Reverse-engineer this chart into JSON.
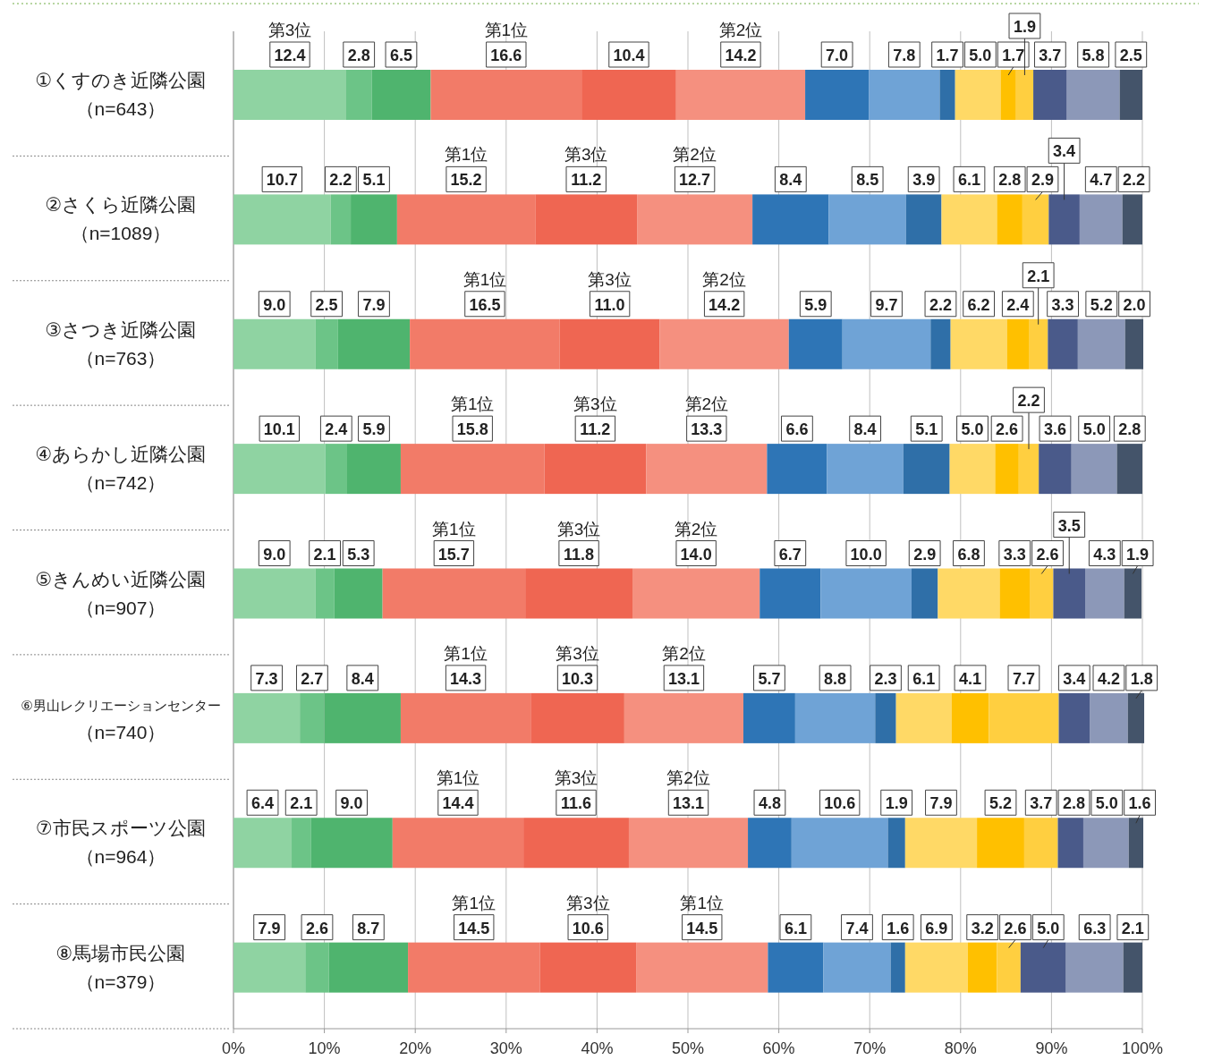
{
  "chart_data": {
    "type": "bar",
    "orientation": "horizontal",
    "stacked": true,
    "grid": "x",
    "categories": [
      "①くすのき近隣公園（n=643）",
      "②さくら近隣公園（n=1089）",
      "③さつき近隣公園（n=763）",
      "④あらかし近隣公園（n=742）",
      "⑤きんめい近隣公園（n=907）",
      "⑥男山レクリエーションセンター（n=740）",
      "⑦市民スポーツ公園（n=964）",
      "⑧馬場市民公園（n=379）"
    ],
    "xlim": [
      0,
      100
    ],
    "xticks": [
      {
        "value": 0,
        "label": "0%"
      },
      {
        "value": 10,
        "label": "10%"
      },
      {
        "value": 20,
        "label": "20%"
      },
      {
        "value": 30,
        "label": "30%"
      },
      {
        "value": 40,
        "label": "40%"
      },
      {
        "value": 50,
        "label": "50%"
      },
      {
        "value": 60,
        "label": "60%"
      },
      {
        "value": 70,
        "label": "70%"
      },
      {
        "value": 80,
        "label": "80%"
      },
      {
        "value": 90,
        "label": "90%"
      },
      {
        "value": 100,
        "label": "100%"
      }
    ],
    "series": [
      {
        "color": "#8fd3a2",
        "values": [
          12.4,
          10.7,
          9.0,
          10.1,
          9.0,
          7.3,
          6.4,
          7.9
        ],
        "value_labels": [
          "12.4",
          "10.7",
          "9.0",
          "10.1",
          "9.0",
          "7.3",
          "6.4",
          "7.9"
        ]
      },
      {
        "color": "#6cc487",
        "values": [
          2.8,
          2.2,
          2.5,
          2.4,
          2.1,
          2.7,
          2.1,
          2.6
        ],
        "value_labels": [
          "2.8",
          "2.2",
          "2.5",
          "2.4",
          "2.1",
          "2.7",
          "2.1",
          "2.6"
        ]
      },
      {
        "color": "#4fb46e",
        "values": [
          6.5,
          5.1,
          7.9,
          5.9,
          5.3,
          8.4,
          9.0,
          8.7
        ],
        "value_labels": [
          "6.5",
          "5.1",
          "7.9",
          "5.9",
          "5.3",
          "8.4",
          "9.0",
          "8.7"
        ]
      },
      {
        "color": "#f27b68",
        "values": [
          16.6,
          15.2,
          16.5,
          15.8,
          15.7,
          14.3,
          14.4,
          14.5
        ],
        "value_labels": [
          "16.6",
          "15.2",
          "16.5",
          "15.8",
          "15.7",
          "14.3",
          "14.4",
          "14.5"
        ]
      },
      {
        "color": "#ef6652",
        "values": [
          10.4,
          11.2,
          11.0,
          11.2,
          11.8,
          10.3,
          11.6,
          10.6
        ],
        "value_labels": [
          "10.4",
          "11.2",
          "11.0",
          "11.2",
          "11.8",
          "10.3",
          "11.6",
          "10.6"
        ]
      },
      {
        "color": "#f5907f",
        "values": [
          14.2,
          12.7,
          14.2,
          13.3,
          14.0,
          13.1,
          13.1,
          14.5
        ],
        "value_labels": [
          "14.2",
          "12.7",
          "14.2",
          "13.3",
          "14.0",
          "13.1",
          "13.1",
          "14.5"
        ]
      },
      {
        "color": "#2e75b6",
        "values": [
          7.0,
          8.4,
          5.9,
          6.6,
          6.7,
          5.7,
          4.8,
          6.1
        ],
        "value_labels": [
          "7.0",
          "8.4",
          "5.9",
          "6.6",
          "6.7",
          "5.7",
          "4.8",
          "6.1"
        ]
      },
      {
        "color": "#6fa3d6",
        "values": [
          7.8,
          8.5,
          9.7,
          8.4,
          10.0,
          8.8,
          10.6,
          7.4
        ],
        "value_labels": [
          "7.8",
          "8.5",
          "9.7",
          "8.4",
          "10.0",
          "8.8",
          "10.6",
          "7.4"
        ]
      },
      {
        "color": "#2f6fa8",
        "values": [
          1.7,
          3.9,
          2.2,
          5.1,
          2.9,
          2.3,
          1.9,
          1.6
        ],
        "value_labels": [
          "1.7",
          "3.9",
          "2.2",
          "5.1",
          "2.9",
          "2.3",
          "1.9",
          "1.6"
        ]
      },
      {
        "color": "#ffd966",
        "values": [
          5.0,
          6.1,
          6.2,
          5.0,
          6.8,
          6.1,
          7.9,
          6.9
        ],
        "value_labels": [
          "5.0",
          "6.1",
          "6.2",
          "5.0",
          "6.8",
          "6.1",
          "7.9",
          "6.9"
        ]
      },
      {
        "color": "#ffc000",
        "values": [
          1.7,
          2.8,
          2.4,
          2.6,
          3.3,
          4.1,
          5.2,
          3.2
        ],
        "value_labels": [
          "1.7",
          "2.8",
          "2.4",
          "2.6",
          "3.3",
          "4.1",
          "5.2",
          "3.2"
        ]
      },
      {
        "color": "#ffcf40",
        "values": [
          1.9,
          2.9,
          2.1,
          2.2,
          2.6,
          7.7,
          3.7,
          2.6
        ],
        "value_labels": [
          "1.9",
          "2.9",
          "2.1",
          "2.2",
          "2.6",
          "7.7",
          "3.7",
          "2.6"
        ]
      },
      {
        "color": "#4a5a8a",
        "values": [
          3.7,
          3.4,
          3.3,
          3.6,
          3.5,
          3.4,
          2.8,
          5.0
        ],
        "value_labels": [
          "3.7",
          "3.4",
          "3.3",
          "3.6",
          "3.5",
          "3.4",
          "2.8",
          "5.0"
        ]
      },
      {
        "color": "#8c98b8",
        "values": [
          5.8,
          4.7,
          5.2,
          5.0,
          4.3,
          4.2,
          5.0,
          6.3
        ],
        "value_labels": [
          "5.8",
          "4.7",
          "5.2",
          "5.0",
          "4.3",
          "4.2",
          "5.0",
          "6.3"
        ]
      },
      {
        "color": "#44546a",
        "values": [
          2.5,
          2.2,
          2.0,
          2.8,
          1.9,
          1.8,
          1.6,
          2.1
        ],
        "value_labels": [
          "2.5",
          "2.2",
          "2.0",
          "2.8",
          "1.9",
          "1.8",
          "1.6",
          "2.1"
        ]
      }
    ],
    "annotations": [
      "第3位",
      "第1位",
      "第2位",
      "第1位",
      "第3位",
      "第2位",
      "第1位",
      "第3位",
      "第2位",
      "第1位",
      "第3位",
      "第2位",
      "第1位",
      "第3位",
      "第2位",
      "第1位",
      "第3位",
      "第2位",
      "第1位",
      "第3位",
      "第2位",
      "第1位",
      "第3位",
      "第1位"
    ]
  }
}
